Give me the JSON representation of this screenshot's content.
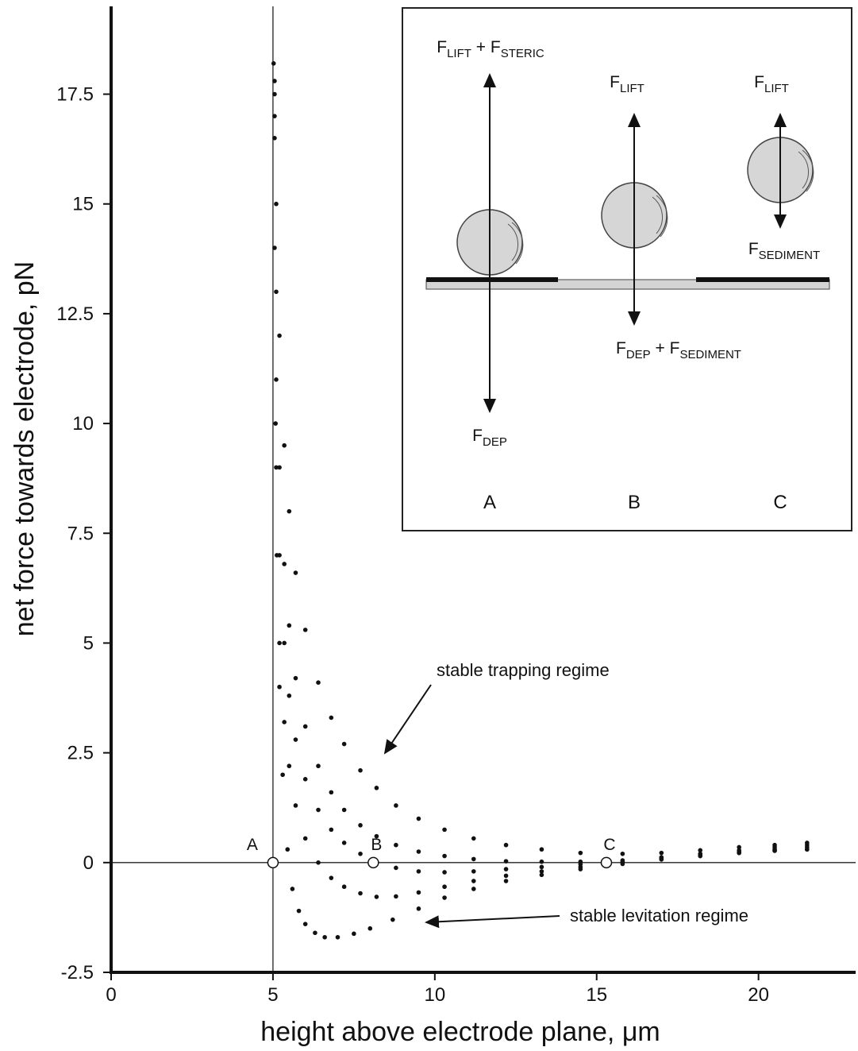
{
  "chart_data": {
    "type": "scatter",
    "x_label": "height above electrode plane, μm",
    "y_label": "net force towards electrode, pN",
    "xlim": [
      0,
      23
    ],
    "ylim": [
      -2.5,
      19.5
    ],
    "xticks": [
      0,
      5,
      10,
      15,
      20
    ],
    "yticks": [
      -2.5,
      0,
      2.5,
      5,
      7.5,
      10,
      12.5,
      15,
      17.5
    ],
    "color": "#111111",
    "reference_lines": {
      "x": 5,
      "y": 0
    },
    "series": [
      {
        "x": [
          5.05,
          5.1,
          5.2,
          5.35,
          5.5,
          5.7,
          6,
          6.4,
          6.8,
          7.2,
          7.7,
          8.2,
          8.8,
          9.5,
          10.3,
          11.2,
          12.2,
          13.3,
          14.5,
          15.8,
          17,
          18.2,
          19.4,
          20.5,
          21.5
        ],
        "values": [
          17.8,
          15,
          12,
          9.5,
          8,
          6.6,
          5.3,
          4.1,
          3.3,
          2.7,
          2.1,
          1.7,
          1.3,
          1.0,
          0.75,
          0.55,
          0.4,
          0.3,
          0.22,
          0.2,
          0.22,
          0.28,
          0.35,
          0.4,
          0.45
        ]
      },
      {
        "x": [
          5.05,
          5.1,
          5.2,
          5.35,
          5.5,
          5.7,
          6,
          6.4,
          6.8,
          7.2,
          7.7,
          8.2,
          8.8,
          9.5,
          10.3,
          11.2,
          12.2,
          13.3,
          14.5,
          15.8,
          17,
          18.2,
          19.4,
          20.5,
          21.5
        ],
        "values": [
          17.5,
          13,
          9,
          6.8,
          5.4,
          4.2,
          3.1,
          2.2,
          1.6,
          1.2,
          0.85,
          0.6,
          0.4,
          0.25,
          0.15,
          0.08,
          0.03,
          0.02,
          0.02,
          0.05,
          0.12,
          0.2,
          0.28,
          0.35,
          0.4
        ]
      },
      {
        "x": [
          5.05,
          5.1,
          5.2,
          5.35,
          5.5,
          5.7,
          6,
          6.4,
          6.8,
          7.2,
          7.7,
          8.2,
          8.8,
          9.5,
          10.3,
          11.2,
          12.2,
          13.3,
          14.5,
          15.8,
          17,
          18.2,
          19.4,
          20.5,
          21.5
        ],
        "values": [
          17,
          11,
          7,
          5,
          3.8,
          2.8,
          1.9,
          1.2,
          0.75,
          0.45,
          0.2,
          0.02,
          -0.12,
          -0.2,
          -0.22,
          -0.2,
          -0.15,
          -0.1,
          -0.04,
          0.02,
          0.1,
          0.18,
          0.25,
          0.3,
          0.35
        ]
      },
      {
        "x": [
          5.05,
          5.1,
          5.2,
          5.35,
          5.5,
          5.7,
          6,
          6.4,
          6.8,
          7.2,
          7.7,
          8.2,
          8.8,
          9.5,
          10.3,
          11.2,
          12.2,
          13.3,
          14.5,
          15.8,
          17,
          18.2,
          19.4,
          20.5,
          21.5
        ],
        "values": [
          16.5,
          9,
          5,
          3.2,
          2.2,
          1.3,
          0.55,
          0,
          -0.35,
          -0.55,
          -0.7,
          -0.78,
          -0.77,
          -0.68,
          -0.55,
          -0.42,
          -0.3,
          -0.2,
          -0.1,
          0,
          0.08,
          0.15,
          0.22,
          0.27,
          0.3
        ]
      },
      {
        "x": [
          5.02,
          5.05,
          5.08,
          5.12,
          5.2,
          5.3,
          5.45,
          5.6,
          5.8,
          6,
          6.3,
          6.6,
          7,
          7.5,
          8,
          8.7,
          9.5,
          10.3,
          11.2,
          12.2,
          13.3,
          14.5,
          15.8,
          17,
          18.2,
          19.4,
          20.5,
          21.5
        ],
        "values": [
          18.2,
          14,
          10,
          7,
          4,
          2,
          0.3,
          -0.6,
          -1.1,
          -1.4,
          -1.6,
          -1.7,
          -1.7,
          -1.62,
          -1.5,
          -1.3,
          -1.05,
          -0.8,
          -0.6,
          -0.42,
          -0.28,
          -0.15,
          -0.03,
          0.07,
          0.15,
          0.22,
          0.27,
          0.3
        ]
      }
    ],
    "points": [
      {
        "label": "A",
        "x": 5,
        "y": 0
      },
      {
        "label": "B",
        "x": 8.1,
        "y": 0
      },
      {
        "label": "C",
        "x": 15.3,
        "y": 0
      }
    ],
    "annotations": [
      "stable trapping regime",
      "stable levitation regime"
    ]
  },
  "inset": {
    "forces": [
      [
        "F",
        "LIFT",
        " + F",
        "STERIC"
      ],
      [
        "F",
        "LIFT"
      ],
      [
        "F",
        "LIFT"
      ],
      [
        "F",
        "SEDIMENT"
      ],
      [
        "F",
        "DEP",
        " + F",
        "SEDIMENT"
      ],
      [
        "F",
        "DEP"
      ]
    ],
    "letters": [
      "A",
      "B",
      "C"
    ]
  }
}
